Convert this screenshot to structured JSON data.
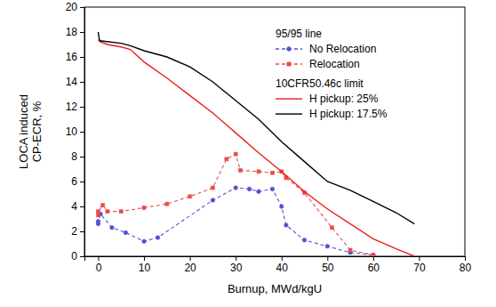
{
  "chart_data": {
    "type": "line",
    "xlabel": "Burnup, MWd/kgU",
    "ylabel": [
      "LOCA induced",
      "CP-ECR, %"
    ],
    "xlim": [
      -3,
      80
    ],
    "ylim": [
      0,
      20
    ],
    "xticks": [
      0,
      10,
      20,
      30,
      40,
      50,
      60,
      70,
      80
    ],
    "yticks": [
      0,
      2,
      4,
      6,
      8,
      10,
      12,
      14,
      16,
      18,
      20
    ],
    "legend": "upper right",
    "series": [
      {
        "name": "No Relocation",
        "group": "95/95 line",
        "color": "#5050d8",
        "line_style": "dashed",
        "marker": "circle",
        "x": [
          0,
          0,
          0.5,
          3,
          6,
          10,
          13,
          25,
          30,
          33,
          35,
          38,
          40,
          41,
          45,
          50,
          55,
          60
        ],
        "values": [
          2.6,
          2.8,
          3.4,
          2.3,
          1.9,
          1.2,
          1.5,
          4.5,
          5.5,
          5.4,
          5.2,
          5.4,
          4.0,
          2.5,
          1.3,
          0.8,
          0.3,
          0.1
        ]
      },
      {
        "name": "Relocation",
        "group": "95/95 line",
        "color": "#e84c4c",
        "line_style": "dashed",
        "marker": "square",
        "x": [
          0,
          0,
          1,
          2,
          5,
          10,
          15,
          20,
          25,
          28,
          30,
          31,
          35,
          38,
          40,
          41,
          45,
          51,
          55,
          60
        ],
        "values": [
          3.3,
          3.6,
          4.1,
          3.6,
          3.6,
          3.9,
          4.2,
          4.8,
          5.5,
          7.8,
          8.2,
          6.9,
          6.8,
          6.7,
          6.8,
          6.3,
          5.1,
          2.3,
          0.5,
          0.1
        ]
      },
      {
        "name": "H pickup: 25%",
        "group": "10CFR50.46c limit",
        "color": "#ee1c1c",
        "line_style": "solid",
        "marker": "none",
        "x": [
          0,
          0.5,
          2,
          5,
          7,
          10,
          15,
          20,
          25,
          30,
          35,
          40,
          45,
          50,
          55,
          60,
          65,
          69
        ],
        "values": [
          17.4,
          17.2,
          17.0,
          16.8,
          16.6,
          15.6,
          14.3,
          12.9,
          11.5,
          9.9,
          8.3,
          6.8,
          5.2,
          3.8,
          2.6,
          1.4,
          0.6,
          0
        ]
      },
      {
        "name": "H pickup: 17.5%",
        "group": "10CFR50.46c limit",
        "color": "#000000",
        "line_style": "solid",
        "marker": "none",
        "x": [
          0,
          0.3,
          5,
          7,
          10,
          15,
          20,
          25,
          30,
          35,
          40,
          45,
          50,
          55,
          60,
          65,
          69
        ],
        "values": [
          18.0,
          17.3,
          17.1,
          16.9,
          16.5,
          16.0,
          15.2,
          14.0,
          12.5,
          11.0,
          9.2,
          7.6,
          6.0,
          5.3,
          4.4,
          3.5,
          2.6
        ]
      }
    ]
  }
}
